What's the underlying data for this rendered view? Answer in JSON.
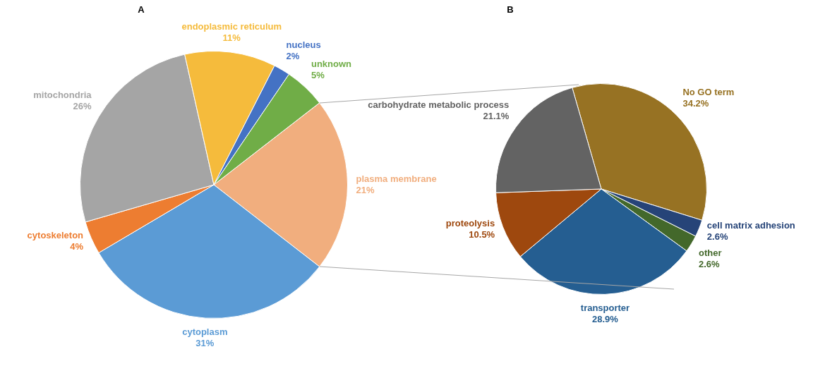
{
  "chart_data": [
    {
      "type": "pie",
      "title": "A",
      "categories": [
        "plasma membrane",
        "cytoplasm",
        "cytoskeleton",
        "mitochondria",
        "endoplasmic reticulum",
        "nucleus",
        "unknown"
      ],
      "values": [
        21,
        31,
        4,
        26,
        11,
        2,
        5
      ],
      "value_labels": [
        "21%",
        "31%",
        "4%",
        "26%",
        "11%",
        "2%",
        "5%"
      ],
      "colors": [
        "#f1ae7e",
        "#5b9bd5",
        "#ed7d31",
        "#a5a5a5",
        "#f5bb3c",
        "#4472c4",
        "#70ad47"
      ],
      "legend": false
    },
    {
      "type": "pie",
      "title": "B",
      "categories": [
        "No GO term",
        "cell matrix adhesion",
        "other",
        "transporter",
        "proteolysis",
        "carbohydrate metabolic process"
      ],
      "values": [
        34.2,
        2.6,
        2.6,
        28.9,
        10.5,
        21.1
      ],
      "value_labels": [
        "34.2%",
        "2.6%",
        "2.6%",
        "28.9%",
        "10.5%",
        "21.1%"
      ],
      "colors": [
        "#977223",
        "#264478",
        "#43682b",
        "#255e91",
        "#9e480e",
        "#636363"
      ],
      "legend": false
    }
  ]
}
